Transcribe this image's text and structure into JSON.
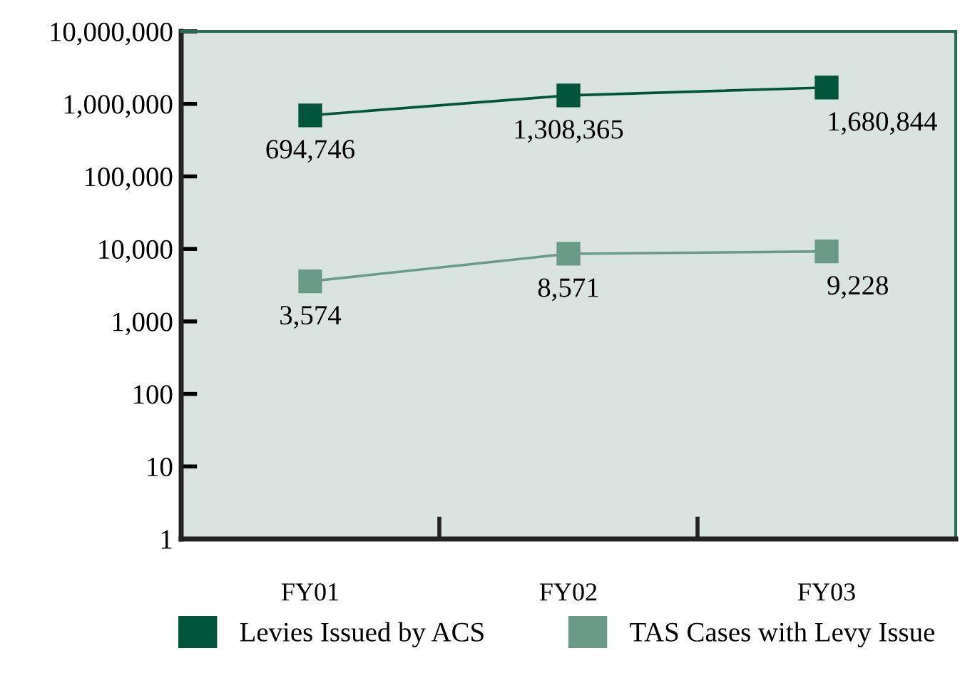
{
  "chart_data": {
    "type": "line",
    "categories": [
      "FY01",
      "FY02",
      "FY03"
    ],
    "series": [
      {
        "name": "Levies Issued by ACS",
        "color": "#00553a",
        "values": [
          694746,
          1308365,
          1680844
        ],
        "value_labels": [
          "694,746",
          "1,308,365",
          "1,680,844"
        ]
      },
      {
        "name": "TAS Cases with Levy Issue",
        "color": "#6a9a88",
        "values": [
          3574,
          8571,
          9228
        ],
        "value_labels": [
          "3,574",
          "8,571",
          "9,228"
        ]
      }
    ],
    "log": true,
    "ylim": [
      1,
      10000000
    ],
    "yticks": [
      {
        "value": 1,
        "label": "1"
      },
      {
        "value": 10,
        "label": "10"
      },
      {
        "value": 100,
        "label": "100"
      },
      {
        "value": 1000,
        "label": "1,000"
      },
      {
        "value": 10000,
        "label": "10,000"
      },
      {
        "value": 100000,
        "label": "100,000"
      },
      {
        "value": 1000000,
        "label": "1,000,000"
      },
      {
        "value": 10000000,
        "label": "10,000,000"
      }
    ],
    "marker": "square",
    "line_style": "solid",
    "grid": false,
    "legend": "bottom"
  }
}
